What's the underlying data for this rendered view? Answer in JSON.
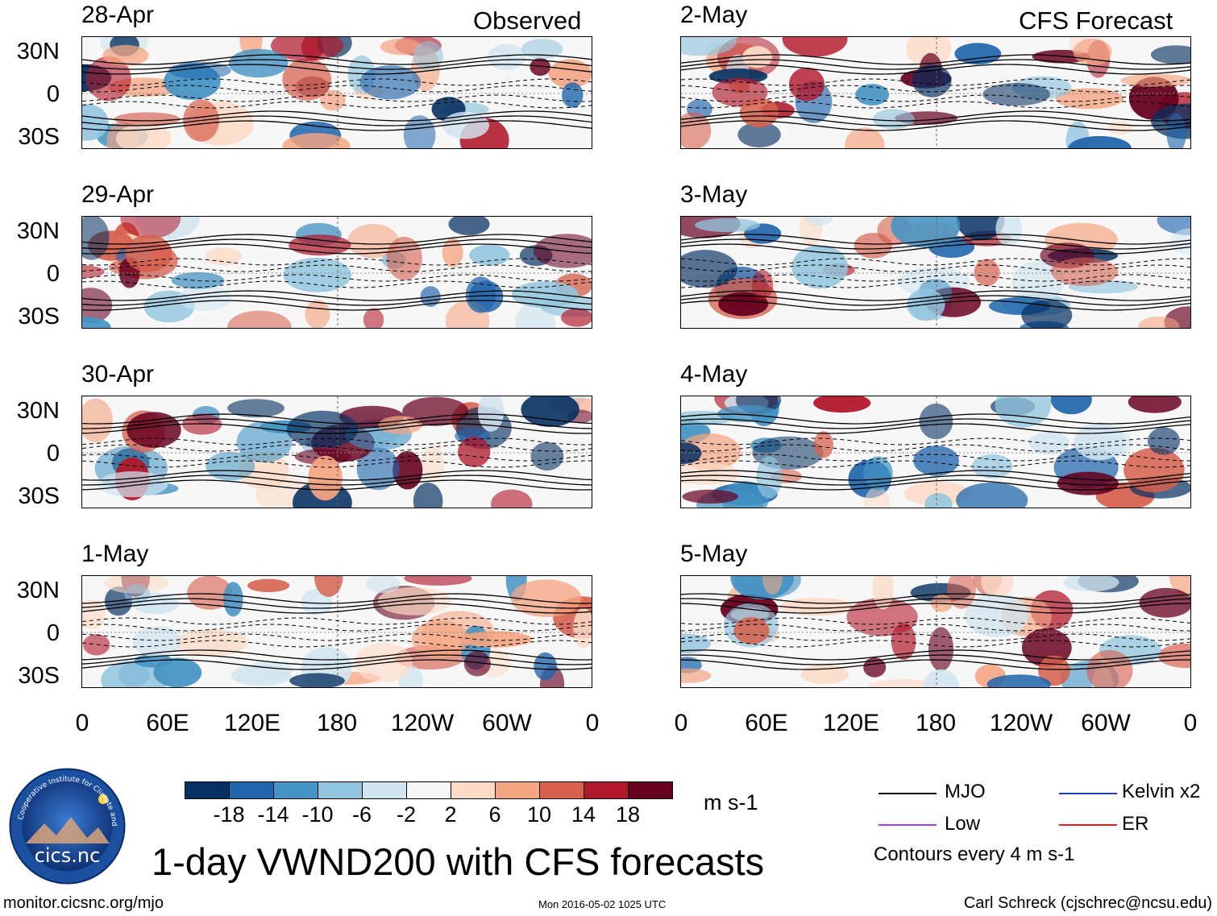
{
  "panels": [
    {
      "date": "28-Apr",
      "corner": "Observed"
    },
    {
      "date": "29-Apr",
      "corner": ""
    },
    {
      "date": "30-Apr",
      "corner": ""
    },
    {
      "date": "1-May",
      "corner": ""
    },
    {
      "date": "2-May",
      "corner": "CFS Forecast"
    },
    {
      "date": "3-May",
      "corner": ""
    },
    {
      "date": "4-May",
      "corner": ""
    },
    {
      "date": "5-May",
      "corner": ""
    }
  ],
  "lat_labels": [
    "30N",
    "0",
    "30S"
  ],
  "lon_labels": [
    "0",
    "60E",
    "120E",
    "180",
    "120W",
    "60W",
    "0"
  ],
  "colorbar": {
    "unit": "m s-1",
    "tick_labels": [
      "-18",
      "-14",
      "-10",
      "-6",
      "-2",
      "2",
      "6",
      "10",
      "14",
      "18"
    ],
    "colors": [
      "#053061",
      "#2166ac",
      "#4393c3",
      "#92c5de",
      "#d1e5f0",
      "#f7f7f7",
      "#fddbc7",
      "#f4a582",
      "#d6604d",
      "#b2182b",
      "#67001f"
    ]
  },
  "legend": {
    "mjo": "MJO",
    "kelvin": "Kelvin x2",
    "low": "Low",
    "er": "ER",
    "mjo_color": "#000000",
    "kelvin_color": "#1f3fbf",
    "low_color": "#a040e0",
    "er_color": "#e02020",
    "contour_note": "Contours every 4 m s-1"
  },
  "logo": {
    "text": "cics.nc",
    "ring_text": "Cooperative Institute for Climate and Satellites"
  },
  "title": "1-day VWND200 with CFS forecasts",
  "footer": {
    "url": "monitor.cicsnc.org/mjo",
    "timestamp": "Mon 2016-05-02 1025 UTC",
    "author": "Carl Schreck (cjschrec@ncsu.edu)"
  }
}
